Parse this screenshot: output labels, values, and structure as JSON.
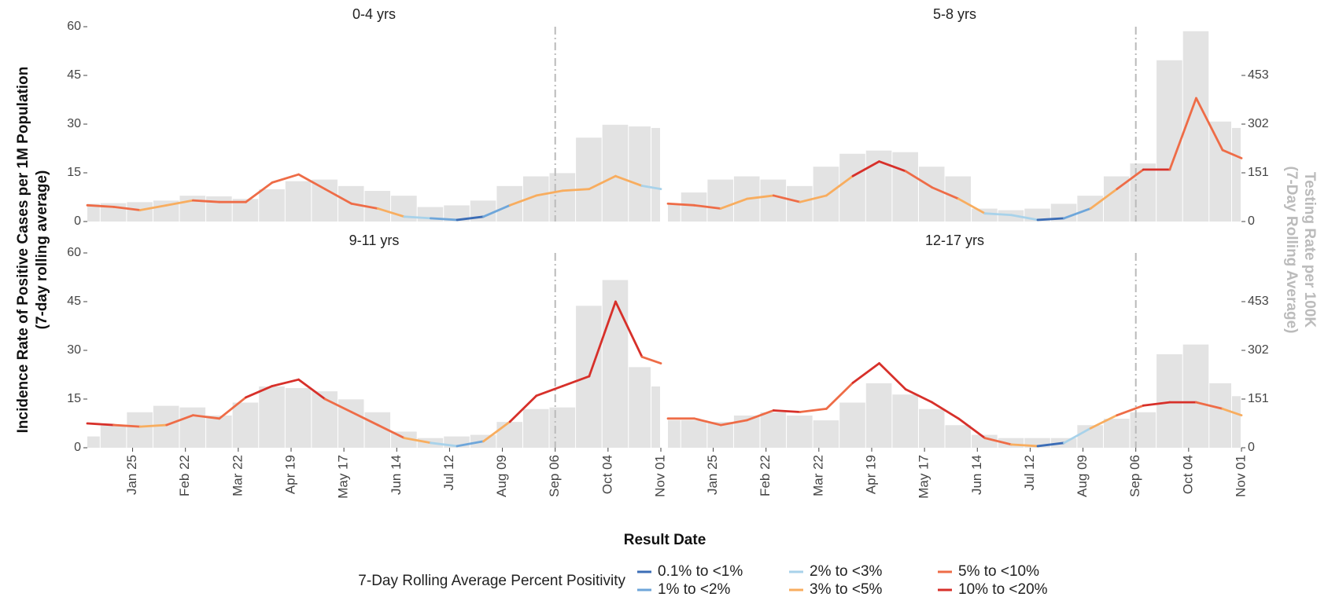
{
  "x_label": "Result Date",
  "y_label": [
    "Incidence Rate of Positive Cases per 1M Population",
    "(7-day rolling average)"
  ],
  "y2_label": [
    "Testing Rate per 100K",
    "(7-Day Rolling Average)"
  ],
  "legend": {
    "title": "7-Day Rolling Average Percent Positivity",
    "items": [
      {
        "name": "0.1% to <1%",
        "color": "#3c6db6"
      },
      {
        "name": "1% to <2%",
        "color": "#6ea6da"
      },
      {
        "name": "2% to <3%",
        "color": "#a8d2ea"
      },
      {
        "name": "3% to <5%",
        "color": "#f8ad5f"
      },
      {
        "name": "5% to <10%",
        "color": "#ee6c47"
      },
      {
        "name": "10% to <20%",
        "color": "#d7302a"
      }
    ]
  },
  "chart_data": [
    {
      "type": "line",
      "title": "0-4 yrs",
      "x": [
        0,
        14,
        28,
        42,
        56,
        70,
        84,
        98,
        112,
        126,
        140,
        154,
        168,
        182,
        196,
        210,
        224,
        238,
        252,
        266,
        280,
        294,
        304
      ],
      "values": [
        5,
        4.5,
        3.5,
        5,
        6.5,
        6,
        6,
        12,
        14.5,
        10,
        5.5,
        4,
        1.5,
        1,
        0.5,
        1.5,
        5,
        8,
        9.5,
        10,
        14,
        11,
        10
      ],
      "levels": [
        4,
        4,
        3,
        3,
        4,
        4,
        4,
        4,
        4,
        4,
        4,
        3,
        2,
        1,
        0,
        1,
        3,
        3,
        3,
        3,
        3,
        2,
        2
      ],
      "tests": [
        55,
        57,
        60,
        65,
        80,
        78,
        70,
        100,
        125,
        130,
        110,
        95,
        80,
        45,
        50,
        65,
        110,
        140,
        150,
        260,
        300,
        295,
        290
      ],
      "xlim": [
        0,
        304
      ],
      "ylim": [
        0,
        60
      ],
      "y2lim": [
        0,
        604
      ],
      "vline": 248,
      "yticks": [
        0,
        15,
        30,
        45,
        60
      ]
    },
    {
      "type": "line",
      "title": "5-8 yrs",
      "x": [
        0,
        14,
        28,
        42,
        56,
        70,
        84,
        98,
        112,
        126,
        140,
        154,
        168,
        182,
        196,
        210,
        224,
        238,
        252,
        266,
        280,
        294,
        304
      ],
      "values": [
        5.5,
        5,
        4,
        7,
        8,
        6,
        8,
        14,
        18.5,
        15.5,
        10.5,
        7,
        2.5,
        2,
        0.5,
        1,
        4,
        10,
        16,
        16,
        38,
        22,
        19.5
      ],
      "levels": [
        4,
        4,
        3,
        3,
        4,
        3,
        3,
        5,
        5,
        4,
        4,
        3,
        2,
        2,
        0,
        1,
        3,
        4,
        5,
        4,
        4,
        4,
        4
      ],
      "tests": [
        55,
        90,
        130,
        140,
        130,
        110,
        170,
        210,
        220,
        215,
        170,
        140,
        40,
        35,
        40,
        55,
        80,
        140,
        180,
        500,
        590,
        310,
        290
      ],
      "xlim": [
        0,
        304
      ],
      "ylim": [
        0,
        60
      ],
      "y2lim": [
        0,
        604
      ],
      "vline": 248,
      "y2ticks": [
        0,
        151,
        302,
        453
      ]
    },
    {
      "type": "line",
      "title": "9-11 yrs",
      "x": [
        0,
        14,
        28,
        42,
        56,
        70,
        84,
        98,
        112,
        126,
        140,
        154,
        168,
        182,
        196,
        210,
        224,
        238,
        252,
        266,
        280,
        294,
        304
      ],
      "values": [
        7.5,
        7,
        6.5,
        7,
        10,
        9,
        15.5,
        19,
        21,
        15,
        11,
        7,
        3,
        1.5,
        0.5,
        2,
        8,
        16,
        19,
        22,
        45,
        28,
        26
      ],
      "levels": [
        5,
        4,
        3,
        4,
        4,
        4,
        5,
        5,
        5,
        4,
        4,
        4,
        3,
        2,
        1,
        3,
        5,
        5,
        5,
        5,
        5,
        4,
        5
      ],
      "tests": [
        35,
        70,
        110,
        130,
        125,
        100,
        140,
        190,
        185,
        175,
        150,
        110,
        50,
        30,
        35,
        40,
        80,
        120,
        125,
        440,
        520,
        250,
        190
      ],
      "xlim": [
        0,
        304
      ],
      "ylim": [
        0,
        60
      ],
      "y2lim": [
        0,
        604
      ],
      "vline": 248,
      "yticks": [
        0,
        15,
        30,
        45,
        60
      ],
      "xticks": [
        {
          "value": 24,
          "label": "Jan 25"
        },
        {
          "value": 52,
          "label": "Feb 22"
        },
        {
          "value": 80,
          "label": "Mar 22"
        },
        {
          "value": 108,
          "label": "Apr 19"
        },
        {
          "value": 136,
          "label": "May 17"
        },
        {
          "value": 164,
          "label": "Jun 14"
        },
        {
          "value": 192,
          "label": "Jul 12"
        },
        {
          "value": 220,
          "label": "Aug 09"
        },
        {
          "value": 248,
          "label": "Sep 06"
        },
        {
          "value": 276,
          "label": "Oct 04"
        },
        {
          "value": 304,
          "label": "Nov 01"
        }
      ]
    },
    {
      "type": "line",
      "title": "12-17 yrs",
      "x": [
        0,
        14,
        28,
        42,
        56,
        70,
        84,
        98,
        112,
        126,
        140,
        154,
        168,
        182,
        196,
        210,
        224,
        238,
        252,
        266,
        280,
        294,
        304
      ],
      "values": [
        9,
        9,
        7,
        8.5,
        11.5,
        11,
        12,
        20,
        26,
        18,
        14,
        9,
        3,
        1,
        0.5,
        1.5,
        6,
        10,
        13,
        14,
        14,
        12,
        10
      ],
      "levels": [
        4,
        4,
        4,
        4,
        5,
        4,
        4,
        5,
        5,
        5,
        5,
        5,
        4,
        3,
        0,
        2,
        3,
        4,
        5,
        5,
        4,
        3,
        4
      ],
      "tests": [
        85,
        85,
        80,
        100,
        110,
        100,
        85,
        140,
        200,
        165,
        120,
        70,
        40,
        30,
        30,
        30,
        70,
        90,
        110,
        290,
        320,
        200,
        160
      ],
      "xlim": [
        0,
        304
      ],
      "ylim": [
        0,
        60
      ],
      "y2lim": [
        0,
        604
      ],
      "vline": 248,
      "y2ticks": [
        0,
        151,
        302,
        453
      ],
      "xticks": [
        {
          "value": 24,
          "label": "Jan 25"
        },
        {
          "value": 52,
          "label": "Feb 22"
        },
        {
          "value": 80,
          "label": "Mar 22"
        },
        {
          "value": 108,
          "label": "Apr 19"
        },
        {
          "value": 136,
          "label": "May 17"
        },
        {
          "value": 164,
          "label": "Jun 14"
        },
        {
          "value": 192,
          "label": "Jul 12"
        },
        {
          "value": 220,
          "label": "Aug 09"
        },
        {
          "value": 248,
          "label": "Sep 06"
        },
        {
          "value": 276,
          "label": "Oct 04"
        },
        {
          "value": 304,
          "label": "Nov 01"
        }
      ]
    }
  ]
}
